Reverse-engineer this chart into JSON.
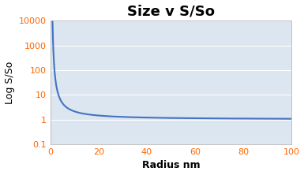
{
  "title": "Size v S/So",
  "xlabel": "Radius nm",
  "ylabel": "Log S/So",
  "xlim": [
    0,
    100
  ],
  "ylim": [
    0.1,
    10000
  ],
  "xticks": [
    0,
    20,
    40,
    60,
    80,
    100
  ],
  "yticks": [
    0.1,
    1,
    10,
    100,
    1000,
    10000
  ],
  "ytick_labels": [
    "0.1",
    "1",
    "10",
    "100",
    "1000",
    "10000"
  ],
  "line_color": "#4472C4",
  "line_width": 1.5,
  "background_color": "#ffffff",
  "plot_bg_color": "#dce6f1",
  "grid_color": "#ffffff",
  "title_fontsize": 13,
  "axis_label_fontsize": 9,
  "tick_fontsize": 8,
  "tick_color": "#FF6600",
  "A": 7.6,
  "r_start": 0.8,
  "r_end": 100
}
